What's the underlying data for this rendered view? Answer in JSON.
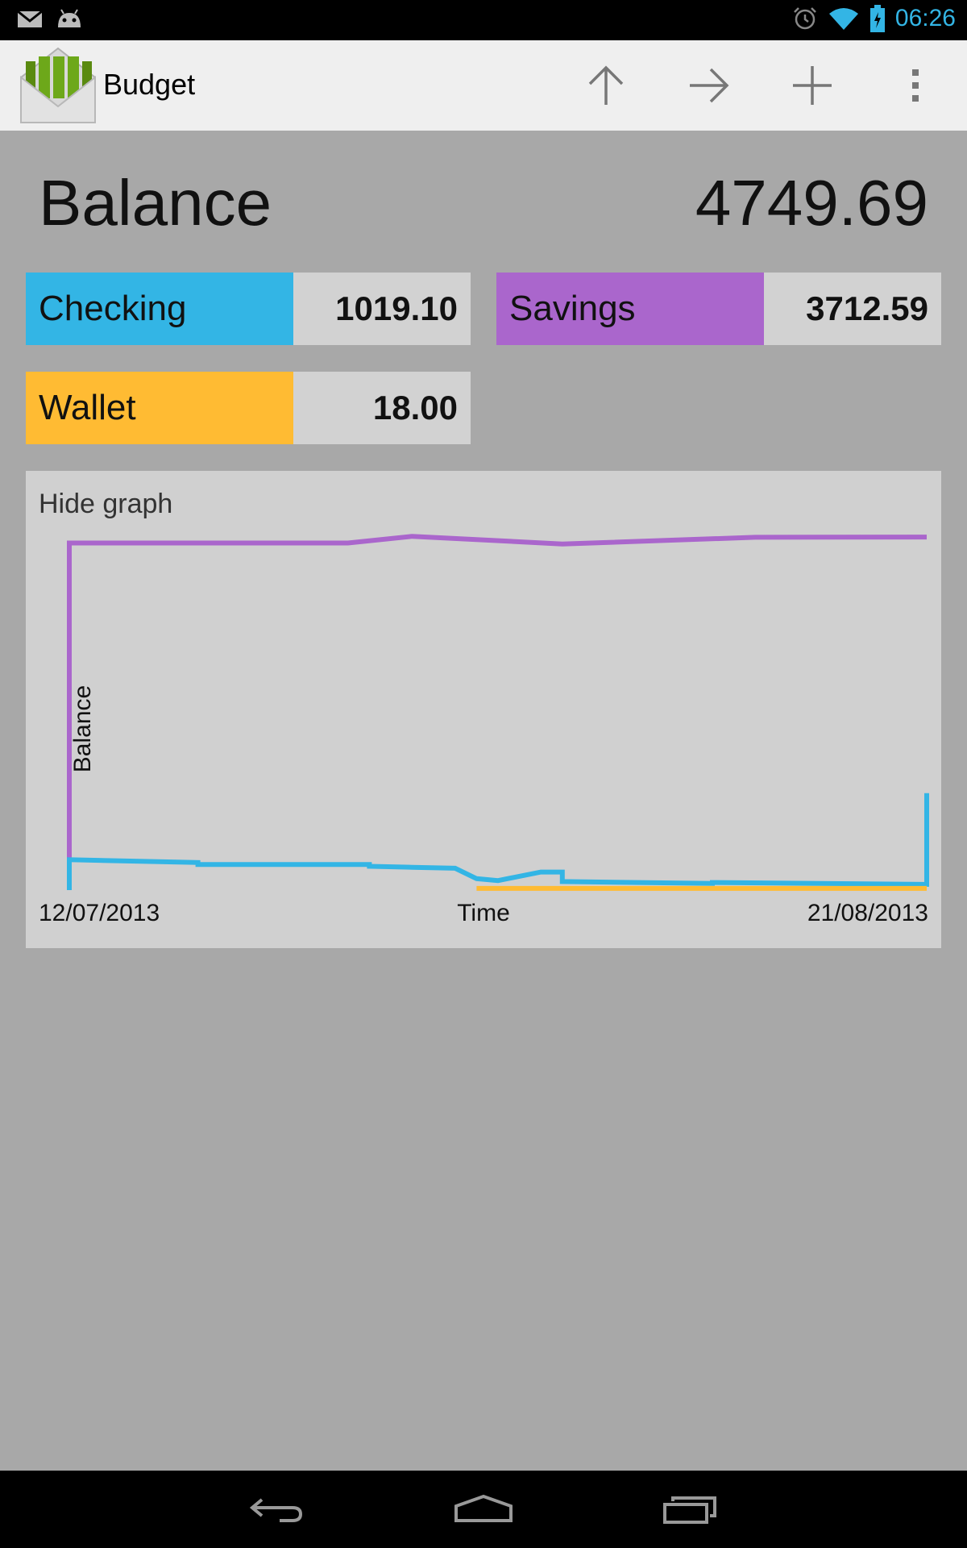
{
  "status_bar": {
    "time": "06:26",
    "icons": [
      "gmail-icon",
      "android-icon",
      "alarm-icon",
      "wifi-icon",
      "battery-icon"
    ]
  },
  "action_bar": {
    "title": "Budget",
    "actions": [
      "arrow-up-icon",
      "arrow-right-icon",
      "plus-icon",
      "overflow-menu-icon"
    ]
  },
  "balance": {
    "label": "Balance",
    "value": "4749.69"
  },
  "accounts": [
    {
      "name": "Checking",
      "amount": "1019.10",
      "color": "#33b5e5"
    },
    {
      "name": "Savings",
      "amount": "3712.59",
      "color": "#aa66cc"
    },
    {
      "name": "Wallet",
      "amount": "18.00",
      "color": "#ffbb33"
    }
  ],
  "graph": {
    "toggle_label": "Hide graph",
    "y_label": "Balance",
    "x_label": "Time",
    "x_start": "12/07/2013",
    "x_end": "21/08/2013"
  },
  "chart_data": {
    "type": "line",
    "xlabel": "Time",
    "ylabel": "Balance",
    "xlim": [
      "12/07/2013",
      "21/08/2013"
    ],
    "ylim": [
      0,
      3900
    ],
    "series": [
      {
        "color": "#aa66cc",
        "x": [
          "12/07/2013",
          "12/07/2013",
          "25/07/2013",
          "28/07/2013",
          "04/08/2013",
          "13/08/2013",
          "21/08/2013"
        ],
        "y": [
          0,
          3650,
          3650,
          3720,
          3640,
          3710,
          3712.59
        ]
      },
      {
        "color": "#33b5e5",
        "x": [
          "12/07/2013",
          "12/07/2013",
          "12/07/2013",
          "18/07/2013",
          "18/07/2013",
          "26/07/2013",
          "26/07/2013",
          "28/07/2013",
          "30/07/2013",
          "31/07/2013",
          "01/08/2013",
          "03/08/2013",
          "04/08/2013",
          "04/08/2013",
          "11/08/2013",
          "11/08/2013",
          "21/08/2013",
          "21/08/2013",
          "21/08/2013"
        ],
        "y": [
          0,
          200,
          320,
          290,
          270,
          270,
          250,
          240,
          230,
          120,
          100,
          190,
          190,
          90,
          70,
          80,
          60,
          1020,
          1019.1
        ]
      },
      {
        "color": "#ffbb33",
        "x": [
          "31/07/2013",
          "21/08/2013"
        ],
        "y": [
          18,
          18
        ]
      }
    ]
  },
  "nav_bar": {
    "buttons": [
      "back-icon",
      "home-icon",
      "recents-icon"
    ]
  }
}
